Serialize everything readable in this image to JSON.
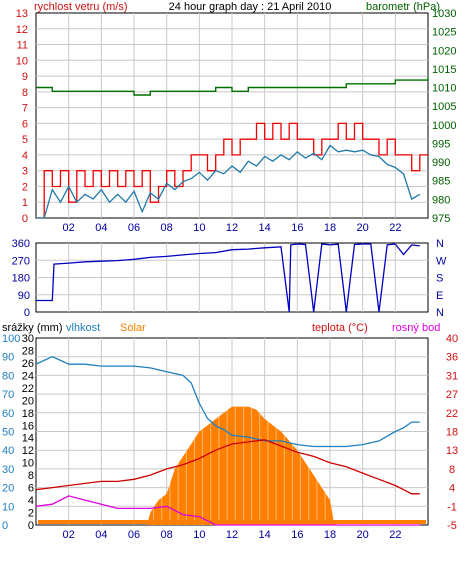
{
  "colors": {
    "wind_avg": "#1F7AA8",
    "wind_gust": "#F00000",
    "barometer": "#007000",
    "direction": "#0000C0",
    "humidity": "#2080C0",
    "solar": "#FF8000",
    "temperature": "#D00000",
    "dewpoint": "#E000E0",
    "grid": "#C8C8C8",
    "axis_red": "#D01010",
    "axis_green": "#006000",
    "axis_blue": "#0000A0"
  },
  "chart_data": [
    {
      "type": "line",
      "title": "24 hour graph day : 21 April 2010",
      "ylabel": "rychlost vetru (m/s)",
      "y2label": "barometr (hPa)",
      "x_ticks": [
        "02",
        "04",
        "06",
        "08",
        "10",
        "12",
        "14",
        "16",
        "18",
        "20",
        "22"
      ],
      "xlim": [
        0,
        24
      ],
      "ylim": [
        0,
        13
      ],
      "y_ticks": [
        "0",
        "1",
        "2",
        "3",
        "4",
        "5",
        "6",
        "7",
        "8",
        "9",
        "10",
        "11",
        "12",
        "13"
      ],
      "y2lim": [
        975,
        1030
      ],
      "y2_ticks": [
        "975",
        "980",
        "985",
        "990",
        "995",
        "1000",
        "1005",
        "1010",
        "1015",
        "1020",
        "1025",
        "1030"
      ],
      "grid": true,
      "series": [
        {
          "name": "wind_gust",
          "x": [
            0,
            0.5,
            0.5,
            1,
            1.5,
            2,
            2.5,
            3,
            3.5,
            4,
            4.5,
            5,
            5.5,
            6,
            6.5,
            7,
            7.5,
            8,
            8.5,
            9,
            9.5,
            10,
            10.5,
            11,
            11.5,
            12,
            12.5,
            13,
            13.5,
            14,
            14.5,
            15,
            15.5,
            16,
            16.5,
            17,
            17.5,
            18,
            18.5,
            19,
            19.5,
            20,
            20.5,
            21,
            21.5,
            22,
            22.5,
            23,
            23.5
          ],
          "values": [
            0,
            0,
            3,
            2,
            3,
            1,
            3,
            2,
            3,
            2,
            3,
            2,
            3,
            2,
            3,
            1,
            2,
            3,
            2,
            3,
            4,
            4,
            3,
            4,
            5,
            4,
            5,
            5,
            6,
            5,
            6,
            5,
            6,
            5,
            5,
            4,
            5,
            5,
            6,
            5,
            6,
            5,
            5,
            4,
            5,
            4,
            4,
            3,
            4
          ]
        },
        {
          "name": "wind_avg",
          "x": [
            0,
            0.5,
            1,
            1.5,
            2,
            2.5,
            3,
            3.5,
            4,
            4.5,
            5,
            5.5,
            6,
            6.5,
            7,
            7.5,
            8,
            8.5,
            9,
            9.5,
            10,
            10.5,
            11,
            11.5,
            12,
            12.5,
            13,
            13.5,
            14,
            14.5,
            15,
            15.5,
            16,
            16.5,
            17,
            17.5,
            18,
            18.5,
            19,
            19.5,
            20,
            20.5,
            21,
            21.5,
            22,
            22.5,
            23,
            23.5
          ],
          "values": [
            0,
            0,
            1.8,
            1,
            2,
            1,
            1.5,
            1.2,
            1.8,
            1,
            1.5,
            1,
            1.7,
            0.4,
            1.6,
            1.2,
            2.2,
            1.8,
            2.3,
            2.5,
            2.9,
            2.4,
            3,
            2.8,
            3.3,
            2.9,
            3.6,
            3.3,
            3.9,
            3.6,
            4,
            3.7,
            4.2,
            3.8,
            4.1,
            3.7,
            4.6,
            4.2,
            4.3,
            4.2,
            4.3,
            4,
            3.9,
            3.4,
            3.2,
            2.8,
            1.2,
            1.5
          ]
        },
        {
          "name": "barometer",
          "x": [
            0,
            1,
            2,
            3,
            4,
            5,
            6,
            7,
            8,
            9,
            10,
            11,
            12,
            13,
            14,
            15,
            16,
            17,
            18,
            19,
            20,
            21,
            22,
            23,
            24
          ],
          "values": [
            1010,
            1009,
            1009,
            1009,
            1009,
            1009,
            1008,
            1009,
            1009,
            1009,
            1009,
            1010,
            1009,
            1010,
            1010,
            1010,
            1010,
            1010,
            1010,
            1011,
            1011,
            1011,
            1012,
            1012,
            1013
          ]
        }
      ]
    },
    {
      "type": "line",
      "xlim": [
        0,
        24
      ],
      "ylim": [
        0,
        360
      ],
      "y_ticks": [
        "0",
        "90",
        "180",
        "270",
        "360"
      ],
      "y2_ticks": [
        "N",
        "E",
        "S",
        "W",
        "N"
      ],
      "grid": true,
      "series": [
        {
          "name": "direction",
          "x": [
            0,
            1,
            1.1,
            2,
            3,
            4,
            5,
            6,
            7,
            8,
            9,
            10,
            11,
            12,
            13,
            14,
            15,
            15.5,
            15.6,
            16,
            16.5,
            17,
            17.5,
            18,
            18.5,
            19,
            19.5,
            20,
            20.5,
            21,
            21.5,
            22,
            22.5,
            23,
            23.5
          ],
          "values": [
            60,
            60,
            250,
            255,
            262,
            265,
            268,
            275,
            285,
            290,
            298,
            305,
            310,
            325,
            328,
            335,
            340,
            0,
            350,
            355,
            352,
            0,
            355,
            350,
            354,
            0,
            352,
            355,
            355,
            0,
            350,
            355,
            300,
            350,
            345
          ]
        }
      ]
    },
    {
      "type": "area",
      "title": "",
      "left_header_1": "srážky (mm)",
      "left_header_2": "vlhkost",
      "left_header_3": "Solar",
      "right_header_1": "teplota (°C)",
      "right_header_2": "rosný bod",
      "xlim": [
        0,
        24
      ],
      "y_ticks_rain": [
        "0",
        "2",
        "4",
        "6",
        "8",
        "10",
        "12",
        "14",
        "16",
        "18",
        "20",
        "22",
        "24",
        "26",
        "28",
        "30"
      ],
      "y_ticks_humidity": [
        "0",
        "10",
        "20",
        "30",
        "40",
        "50",
        "60",
        "70",
        "80",
        "90",
        "100"
      ],
      "y_ticks_temp": [
        "-5",
        "-1",
        "4",
        "8",
        "13",
        "18",
        "22",
        "27",
        "31",
        "36",
        "40"
      ],
      "grid": true,
      "series": [
        {
          "name": "solar",
          "x": [
            0,
            6.8,
            7,
            7.5,
            8,
            8.5,
            9,
            9.5,
            10,
            10.5,
            11,
            11.5,
            12,
            12.5,
            13,
            13.5,
            14,
            14.5,
            15,
            15.5,
            16,
            16.5,
            17,
            17.5,
            18,
            18.2,
            18.4,
            24
          ],
          "values": [
            0,
            0,
            2,
            4,
            5,
            9,
            11,
            13,
            15,
            16,
            17,
            18,
            19,
            19,
            19,
            18.5,
            17,
            16,
            15,
            13.5,
            12,
            10,
            8,
            6,
            4,
            1,
            0,
            0
          ]
        },
        {
          "name": "humidity",
          "x": [
            0,
            0.5,
            1,
            1.5,
            2,
            3,
            4,
            5,
            6,
            7,
            8,
            9,
            9.5,
            10,
            10.5,
            11,
            11.5,
            12,
            13,
            14,
            15,
            16,
            17,
            18,
            19,
            20,
            21,
            22,
            22.5,
            23,
            23.5
          ],
          "values": [
            86,
            88,
            90,
            88,
            86,
            86,
            85,
            85,
            85,
            84,
            82,
            80,
            76,
            65,
            57,
            53,
            51,
            48,
            47,
            45,
            45,
            43,
            42,
            42,
            42,
            43,
            45,
            50,
            52,
            55,
            55
          ]
        },
        {
          "name": "temperature",
          "x": [
            0,
            1,
            2,
            3,
            4,
            5,
            6,
            7,
            8,
            9,
            10,
            11,
            12,
            13,
            14,
            15,
            16,
            17,
            18,
            19,
            20,
            21,
            22,
            23,
            23.5
          ],
          "values": [
            3.5,
            4,
            4.5,
            5,
            5.5,
            5.5,
            6,
            7,
            8.5,
            9.5,
            11,
            13,
            14.5,
            15,
            15.5,
            14,
            12.5,
            11.5,
            10,
            9,
            7.5,
            6,
            4.5,
            2.5,
            2.5
          ]
        },
        {
          "name": "dewpoint",
          "x": [
            0,
            1,
            2,
            3,
            4,
            5,
            6,
            7,
            8,
            9,
            10,
            11,
            12,
            13,
            14,
            15,
            16,
            17,
            18,
            19,
            20,
            21,
            22,
            23,
            23.5
          ],
          "values": [
            -0.5,
            0,
            2,
            1,
            0,
            -1,
            -1,
            -1,
            -0.5,
            -2.5,
            -3,
            -5,
            -5.5,
            -6,
            -6.5,
            -7,
            -8,
            -8.5,
            -10,
            -11,
            -12,
            -12.5,
            -12,
            -12.5,
            -12.5
          ]
        }
      ]
    }
  ]
}
